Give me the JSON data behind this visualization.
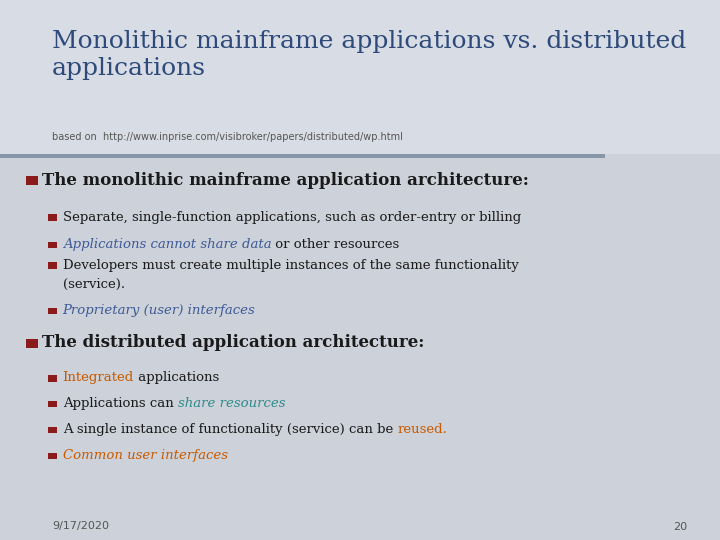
{
  "title_line1": "Monolithic mainframe applications vs. distributed",
  "title_line2": "applications",
  "subtitle": "based on  http://www.inprise.com/visibroker/papers/distributed/wp.html",
  "title_color": "#2d4a7a",
  "subtitle_color": "#555555",
  "bg_top_color": "#d8dce4",
  "bg_bottom_color": "#d0d4dc",
  "separator_color": "#8896aa",
  "bullet_color": "#8b1a1a",
  "s1_header": "The monolithic mainframe application architecture:",
  "s2_header": "The distributed application architecture:",
  "header_text_color": "#1a1a1a",
  "footer_date": "9/17/2020",
  "footer_page": "20",
  "footer_color": "#555555",
  "blue_color": "#3d5a96",
  "teal_color": "#2e8b8b",
  "orange_color": "#c85a00"
}
